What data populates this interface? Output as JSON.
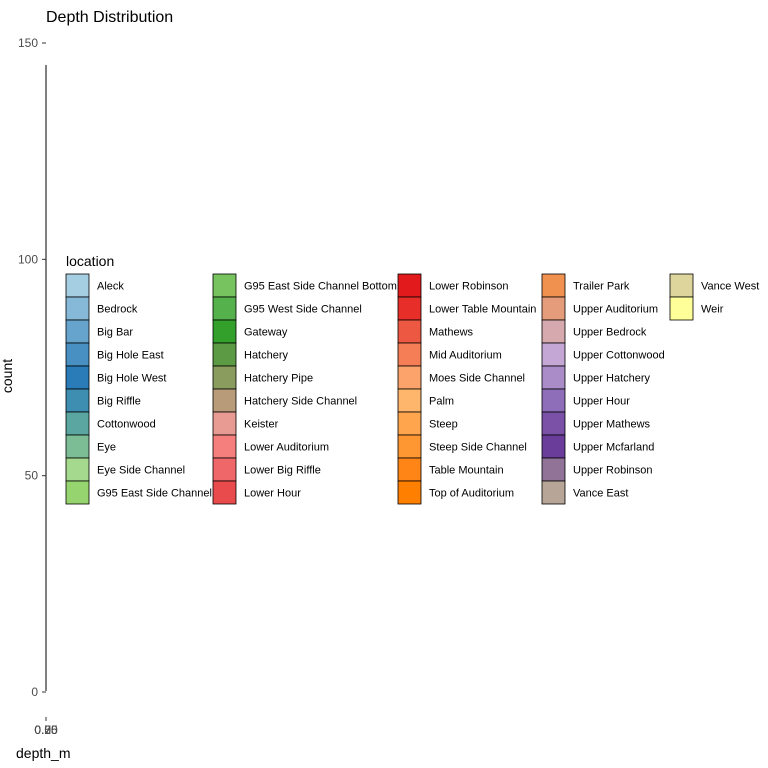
{
  "chart_data": {
    "type": "bar",
    "title": "Depth Distribution",
    "xlabel": "depth_m",
    "ylabel": "count",
    "y_ticks": [
      "0",
      "50",
      "100",
      "150"
    ],
    "ylim": [
      0,
      150
    ],
    "x_tick_labels_overlapping": [
      "0.00",
      "0.25",
      "0.50",
      "0.75"
    ],
    "grid": false,
    "legend": {
      "title": "location",
      "placement": "center",
      "columns": [
        [
          {
            "label": "Aleck",
            "color": "#A6CEE3"
          },
          {
            "label": "Bedrock",
            "color": "#86B9D8"
          },
          {
            "label": "Big Bar",
            "color": "#67A4CD"
          },
          {
            "label": "Big Hole East",
            "color": "#4890C2"
          },
          {
            "label": "Big Hole West",
            "color": "#297CB7"
          },
          {
            "label": "Big Riffle",
            "color": "#3E8EB1"
          },
          {
            "label": "Cottonwood",
            "color": "#5BA6A1"
          },
          {
            "label": "Eye",
            "color": "#7DBD96"
          },
          {
            "label": "Eye Side Channel",
            "color": "#A5D98D"
          },
          {
            "label": "G95 East Side Channel",
            "color": "#95D46E"
          }
        ],
        [
          {
            "label": "G95 East Side Channel Bottom",
            "color": "#76C35F"
          },
          {
            "label": "G95 West Side Channel",
            "color": "#54B14C"
          },
          {
            "label": "Gateway",
            "color": "#33A02C"
          },
          {
            "label": "Hatchery",
            "color": "#5C9B44"
          },
          {
            "label": "Hatchery Pipe",
            "color": "#8A9C5E"
          },
          {
            "label": "Hatchery Side Channel",
            "color": "#B89B78"
          },
          {
            "label": "Keister",
            "color": "#E89B93"
          },
          {
            "label": "Lower Auditorium",
            "color": "#F47F7C"
          },
          {
            "label": "Lower Big Riffle",
            "color": "#F06769"
          },
          {
            "label": "Lower Hour",
            "color": "#E94B4C"
          }
        ],
        [
          {
            "label": "Lower Robinson",
            "color": "#E31A1C"
          },
          {
            "label": "Lower Table Mountain",
            "color": "#E72E28"
          },
          {
            "label": "Mathews",
            "color": "#ED5842"
          },
          {
            "label": "Mid Auditorium",
            "color": "#F57E56"
          },
          {
            "label": "Moes Side Channel",
            "color": "#FBA36B"
          },
          {
            "label": "Palm",
            "color": "#FDB66B"
          },
          {
            "label": "Steep",
            "color": "#FEA54D"
          },
          {
            "label": "Steep Side Channel",
            "color": "#FE9631"
          },
          {
            "label": "Table Mountain",
            "color": "#FF8516"
          },
          {
            "label": "Top of Auditorium",
            "color": "#FF7F00"
          }
        ],
        [
          {
            "label": "Trailer Park",
            "color": "#F0914F"
          },
          {
            "label": "Upper Auditorium",
            "color": "#E59C7B"
          },
          {
            "label": "Upper Bedrock",
            "color": "#D6A9AE"
          },
          {
            "label": "Upper Cottonwood",
            "color": "#C4A7D5"
          },
          {
            "label": "Upper Hatchery",
            "color": "#A98CC8"
          },
          {
            "label": "Upper Hour",
            "color": "#8E6DB9"
          },
          {
            "label": "Upper Mathews",
            "color": "#7A51A6"
          },
          {
            "label": "Upper Mcfarland",
            "color": "#6A3D9A"
          },
          {
            "label": "Upper Robinson",
            "color": "#917398"
          },
          {
            "label": "Vance East",
            "color": "#B7A598"
          }
        ],
        [
          {
            "label": "Vance West",
            "color": "#DDD59C"
          },
          {
            "label": "Weir",
            "color": "#FFFF99"
          }
        ]
      ]
    },
    "series": []
  }
}
